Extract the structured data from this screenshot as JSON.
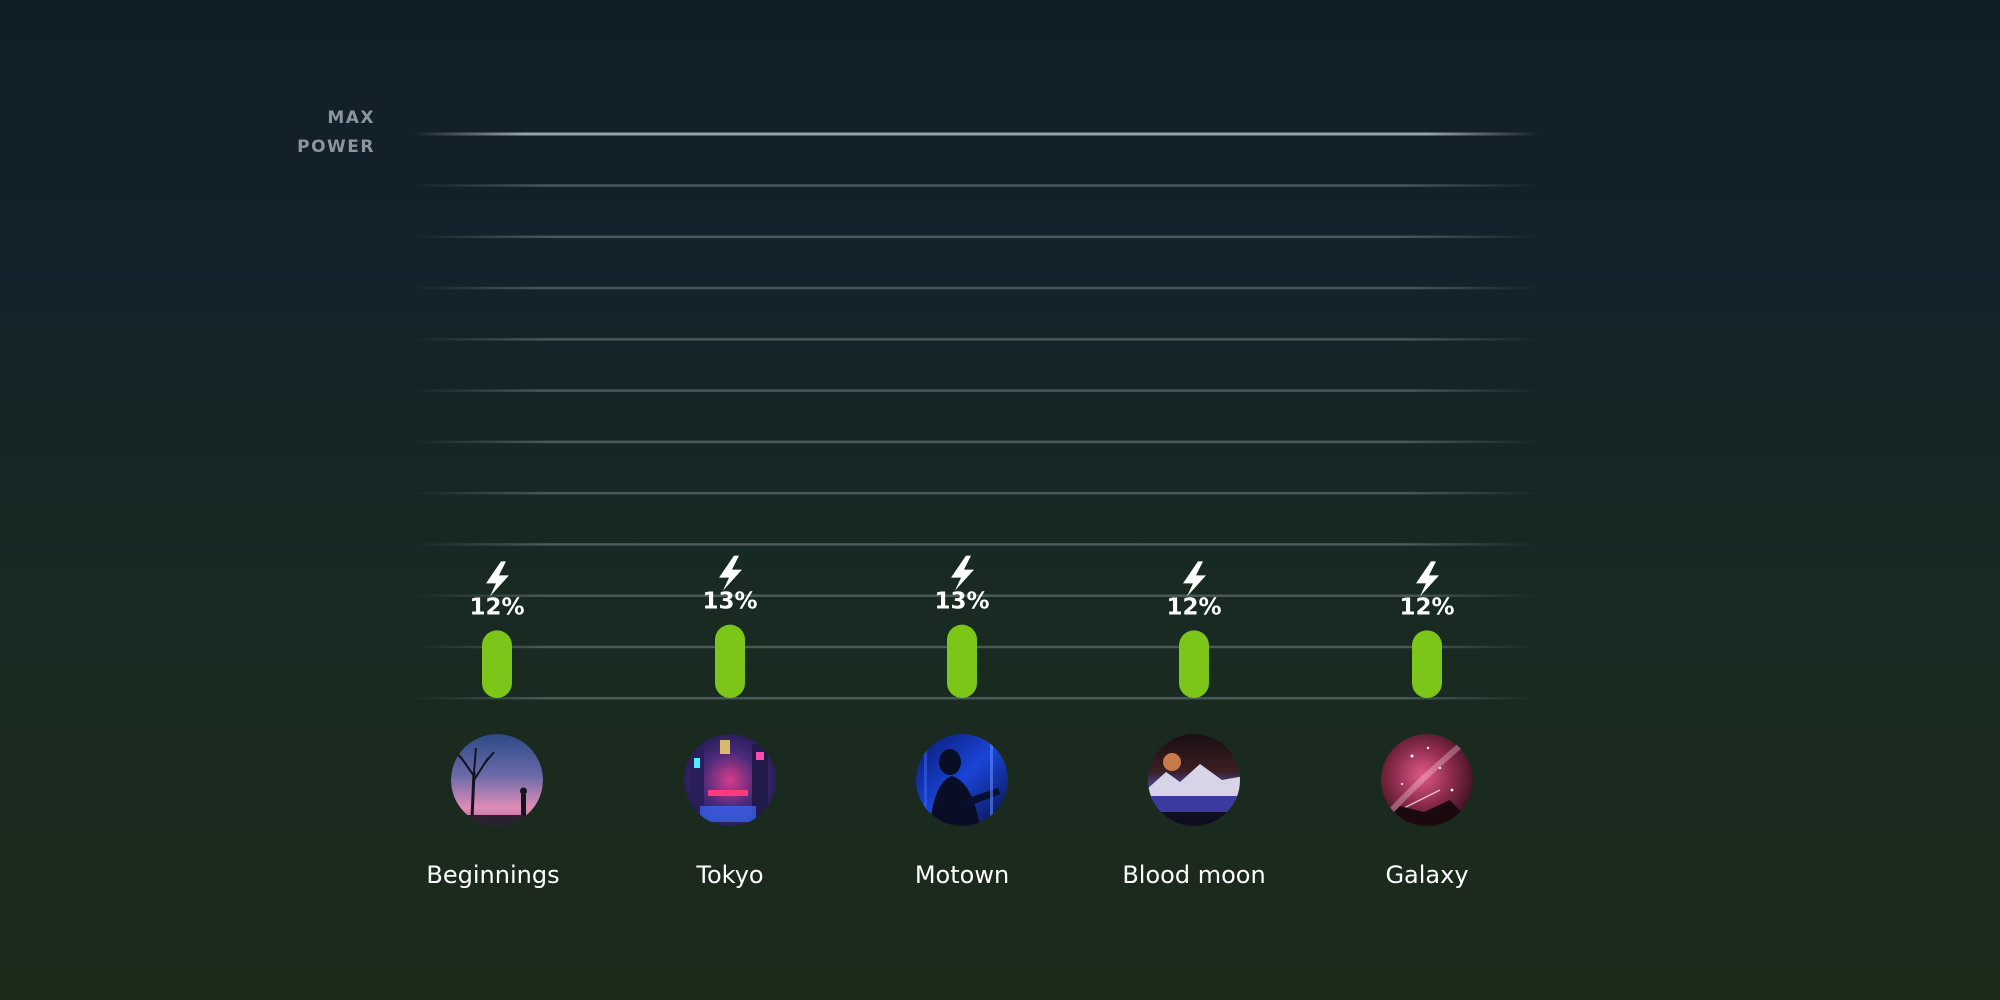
{
  "max_label": [
    "MAX",
    "POWER"
  ],
  "chart_data": {
    "type": "bar",
    "categories": [
      "Beginnings",
      "Tokyo",
      "Motown",
      "Blood moon",
      "Galaxy"
    ],
    "values": [
      12,
      13,
      13,
      12,
      12
    ],
    "value_labels": [
      "12%",
      "13%",
      "13%",
      "12%",
      "12%"
    ],
    "ylim": [
      0,
      100
    ],
    "grid": true,
    "colors": {
      "bar": "#7cc61a",
      "bar_highlight": "#8fd824",
      "gridline": "#3a4a4a",
      "max_line": "#9aa3a8"
    },
    "thumbnails": [
      "tree-dusk-thumbnail",
      "neon-city-thumbnail",
      "guitarist-blue-thumbnail",
      "moon-mountain-thumbnail",
      "milky-way-thumbnail"
    ]
  }
}
